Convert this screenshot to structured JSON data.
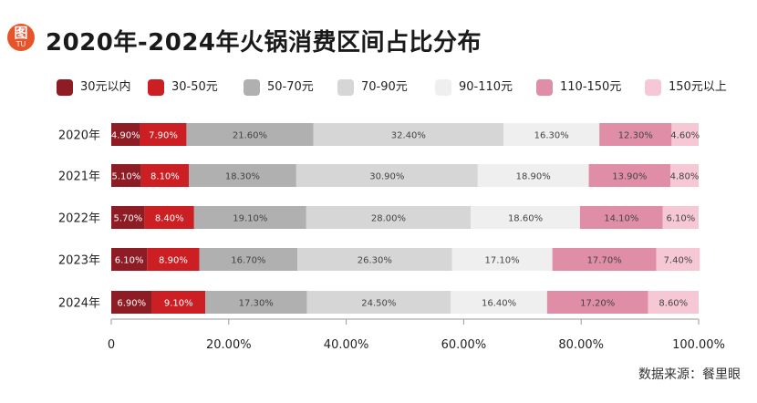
{
  "title": "2020年-2024年火锅消费区间占比分布",
  "logo": {
    "char": "图",
    "sub": "TU",
    "color": "#e8542a"
  },
  "source": "数据来源：餐里眼",
  "chart_data": {
    "type": "bar",
    "orientation": "horizontal",
    "stacked": true,
    "title": "2020年-2024年火锅消费区间占比分布",
    "categories": [
      "2020年",
      "2021年",
      "2022年",
      "2023年",
      "2024年"
    ],
    "xlim": [
      0,
      100
    ],
    "x_ticks": [
      "0",
      "20.00%",
      "40.00%",
      "60.00%",
      "80.00%",
      "100.00%"
    ],
    "legend_position": "top",
    "series": [
      {
        "name": "30元以内",
        "color": "#8e1c24",
        "values": [
          4.9,
          5.1,
          5.7,
          6.1,
          6.9
        ],
        "labels": [
          "4.90%",
          "5.10%",
          "5.70%",
          "6.10%",
          "6.90%"
        ]
      },
      {
        "name": "30-50元",
        "color": "#cc1f24",
        "values": [
          7.9,
          8.1,
          8.4,
          8.9,
          9.1
        ],
        "labels": [
          "7.90%",
          "8.10%",
          "8.40%",
          "8.90%",
          "9.10%"
        ]
      },
      {
        "name": "50-70元",
        "color": "#b0b0b0",
        "values": [
          21.6,
          18.3,
          19.1,
          16.7,
          17.3
        ],
        "labels": [
          "21.60%",
          "18.30%",
          "19.10%",
          "16.70%",
          "17.30%"
        ]
      },
      {
        "name": "70-90元",
        "color": "#d6d6d6",
        "values": [
          32.4,
          30.9,
          28.0,
          26.3,
          24.5
        ],
        "labels": [
          "32.40%",
          "30.90%",
          "28.00%",
          "26.30%",
          "24.50%"
        ]
      },
      {
        "name": "90-110元",
        "color": "#efefef",
        "values": [
          16.3,
          18.9,
          18.6,
          17.1,
          16.4
        ],
        "labels": [
          "16.30%",
          "18.90%",
          "18.60%",
          "17.10%",
          "16.40%"
        ]
      },
      {
        "name": "110-150元",
        "color": "#e08ea8",
        "values": [
          12.3,
          13.9,
          14.1,
          17.7,
          17.2
        ],
        "labels": [
          "12.30%",
          "13.90%",
          "14.10%",
          "17.70%",
          "17.20%"
        ]
      },
      {
        "name": "150元以上",
        "color": "#f6c8d6",
        "values": [
          4.6,
          4.8,
          6.1,
          7.4,
          8.6
        ],
        "labels": [
          "4.60%",
          "4.80%",
          "6.10%",
          "7.40%",
          "8.60%"
        ]
      }
    ]
  }
}
